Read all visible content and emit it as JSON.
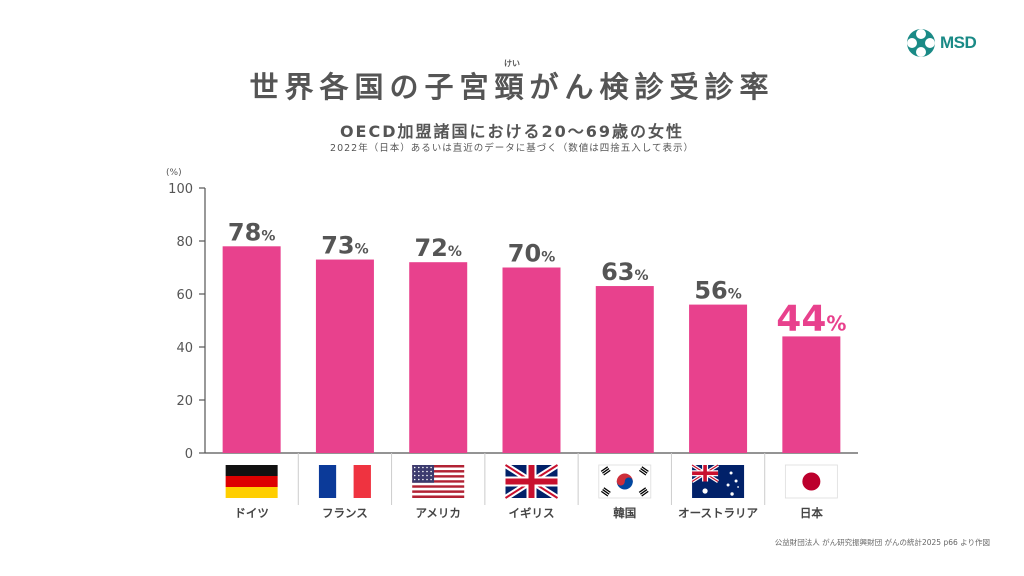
{
  "logo": {
    "text": "MSD",
    "color": "#1a8a86"
  },
  "header": {
    "title": "世界各国の子宮頸がん検診受診率",
    "ruby": "けい",
    "subtitle": "OECD加盟諸国における20～69歳の女性",
    "note": "2022年（日本）あるいは直近のデータに基づく（数値は四捨五入して表示）"
  },
  "source": "公益財団法人 がん研究振興財団 がんの統計2025 p66 より作図",
  "chart_data": {
    "type": "bar",
    "categories": [
      "ドイツ",
      "フランス",
      "アメリカ",
      "イギリス",
      "韓国",
      "オーストラリア",
      "日本"
    ],
    "values": [
      78,
      73,
      72,
      70,
      63,
      56,
      44
    ],
    "value_suffix": "%",
    "highlight_index": 6,
    "ylabel": "(%)",
    "ylim": [
      0,
      100
    ],
    "yticks": [
      0,
      20,
      40,
      60,
      80,
      100
    ],
    "grid": false,
    "colors": {
      "bar": "#e8418d",
      "label": "#555555",
      "highlight_label": "#e8418d",
      "axis": "#555555"
    },
    "flags": [
      "germany-flag",
      "france-flag",
      "usa-flag",
      "uk-flag",
      "korea-flag",
      "australia-flag",
      "japan-flag"
    ]
  }
}
